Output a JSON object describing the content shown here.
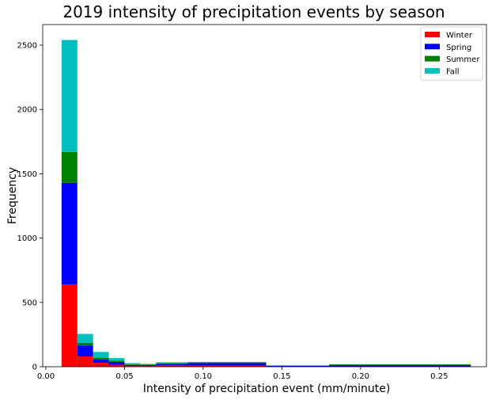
{
  "chart_data": {
    "type": "bar",
    "stacked": true,
    "histogram": true,
    "title": "2019 intensity of precipitation events by season",
    "xlabel": "Intensity of precipitation event (mm/minute)",
    "ylabel": "Frequency",
    "xlim": [
      -0.002,
      0.28
    ],
    "ylim": [
      0,
      2660
    ],
    "xticks": [
      0.0,
      0.05,
      0.1,
      0.15,
      0.2,
      0.25
    ],
    "xtick_labels": [
      "0.00",
      "0.05",
      "0.10",
      "0.15",
      "0.20",
      "0.25"
    ],
    "yticks": [
      0,
      500,
      1000,
      1500,
      2000,
      2500
    ],
    "ytick_labels": [
      "0",
      "500",
      "1000",
      "1500",
      "2000",
      "2500"
    ],
    "bins": [
      [
        0.01,
        0.02
      ],
      [
        0.02,
        0.03
      ],
      [
        0.03,
        0.04
      ],
      [
        0.04,
        0.05
      ],
      [
        0.05,
        0.06
      ],
      [
        0.06,
        0.07
      ],
      [
        0.07,
        0.09
      ],
      [
        0.09,
        0.14
      ],
      [
        0.14,
        0.18
      ],
      [
        0.18,
        0.27
      ]
    ],
    "series": [
      {
        "name": "Winter",
        "color": "#ff0000",
        "values": [
          640,
          80,
          30,
          15,
          5,
          5,
          10,
          8,
          2,
          3
        ]
      },
      {
        "name": "Spring",
        "color": "#0000ff",
        "values": [
          790,
          85,
          25,
          22,
          8,
          7,
          12,
          20,
          5,
          10
        ]
      },
      {
        "name": "Summer",
        "color": "#008000",
        "values": [
          240,
          20,
          15,
          10,
          5,
          5,
          5,
          5,
          3,
          5
        ]
      },
      {
        "name": "Fall",
        "color": "#00bfbf",
        "values": [
          870,
          70,
          45,
          20,
          10,
          5,
          8,
          5,
          0,
          2
        ]
      }
    ],
    "legend_position": "top-right",
    "grid": false
  }
}
